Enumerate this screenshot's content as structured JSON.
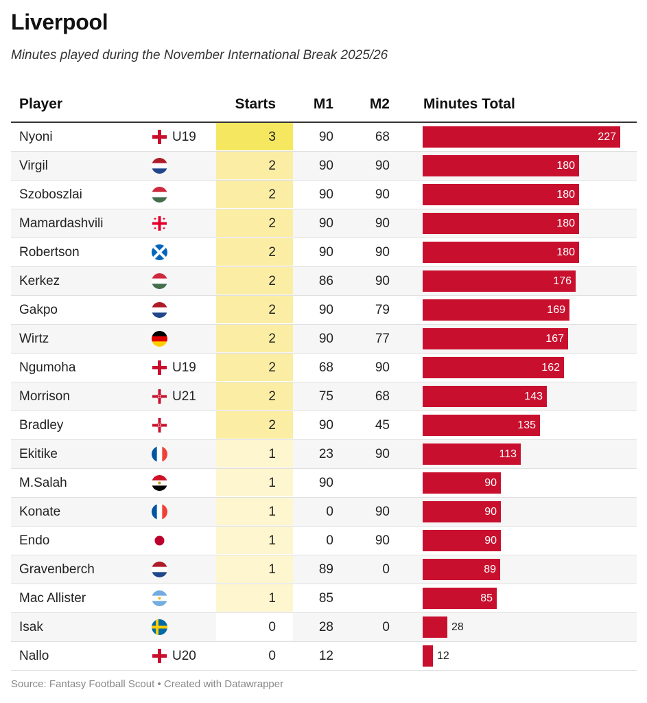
{
  "title": "Liverpool",
  "subtitle": "Minutes played during the November International Break 2025/26",
  "headers": {
    "player": "Player",
    "starts": "Starts",
    "m1": "M1",
    "m2": "M2",
    "total": "Minutes Total"
  },
  "source": "Source: Fantasy Football Scout • Created with Datawrapper",
  "colors": {
    "bar": "#c8102e",
    "starts3": "#f5e860",
    "starts2": "#fbeea4",
    "starts1": "#fdf6cf",
    "starts0": "#ffffff"
  },
  "chart_data": {
    "type": "table",
    "title": "Liverpool",
    "subtitle": "Minutes played during the November International Break 2025/26",
    "columns": [
      "Player",
      "Starts",
      "M1",
      "M2",
      "Minutes Total"
    ],
    "total_range": [
      0,
      227
    ],
    "rows": [
      {
        "player": "Nyoni",
        "flag": "england",
        "age": "U19",
        "starts": "3",
        "m1": "90",
        "m2": "68",
        "total": 227
      },
      {
        "player": "Virgil",
        "flag": "netherlands",
        "age": "",
        "starts": "2",
        "m1": "90",
        "m2": "90",
        "total": 180
      },
      {
        "player": "Szoboszlai",
        "flag": "hungary",
        "age": "",
        "starts": "2",
        "m1": "90",
        "m2": "90",
        "total": 180
      },
      {
        "player": "Mamardashvili",
        "flag": "georgia",
        "age": "",
        "starts": "2",
        "m1": "90",
        "m2": "90",
        "total": 180
      },
      {
        "player": "Robertson",
        "flag": "scotland",
        "age": "",
        "starts": "2",
        "m1": "90",
        "m2": "90",
        "total": 180
      },
      {
        "player": "Kerkez",
        "flag": "hungary",
        "age": "",
        "starts": "2",
        "m1": "86",
        "m2": "90",
        "total": 176
      },
      {
        "player": "Gakpo",
        "flag": "netherlands",
        "age": "",
        "starts": "2",
        "m1": "90",
        "m2": "79",
        "total": 169
      },
      {
        "player": "Wirtz",
        "flag": "germany",
        "age": "",
        "starts": "2",
        "m1": "90",
        "m2": "77",
        "total": 167
      },
      {
        "player": "Ngumoha",
        "flag": "england",
        "age": "U19",
        "starts": "2",
        "m1": "68",
        "m2": "90",
        "total": 162
      },
      {
        "player": "Morrison",
        "flag": "northern-ireland",
        "age": "U21",
        "starts": "2",
        "m1": "75",
        "m2": "68",
        "total": 143
      },
      {
        "player": "Bradley",
        "flag": "northern-ireland",
        "age": "",
        "starts": "2",
        "m1": "90",
        "m2": "45",
        "total": 135
      },
      {
        "player": "Ekitike",
        "flag": "france",
        "age": "",
        "starts": "1",
        "m1": "23",
        "m2": "90",
        "total": 113
      },
      {
        "player": "M.Salah",
        "flag": "egypt",
        "age": "",
        "starts": "1",
        "m1": "90",
        "m2": "",
        "total": 90
      },
      {
        "player": "Konate",
        "flag": "france",
        "age": "",
        "starts": "1",
        "m1": "0",
        "m2": "90",
        "total": 90
      },
      {
        "player": "Endo",
        "flag": "japan",
        "age": "",
        "starts": "1",
        "m1": "0",
        "m2": "90",
        "total": 90
      },
      {
        "player": "Gravenberch",
        "flag": "netherlands",
        "age": "",
        "starts": "1",
        "m1": "89",
        "m2": "0",
        "total": 89
      },
      {
        "player": "Mac Allister",
        "flag": "argentina",
        "age": "",
        "starts": "1",
        "m1": "85",
        "m2": "",
        "total": 85
      },
      {
        "player": "Isak",
        "flag": "sweden",
        "age": "",
        "starts": "0",
        "m1": "28",
        "m2": "0",
        "total": 28
      },
      {
        "player": "Nallo",
        "flag": "england",
        "age": "U20",
        "starts": "0",
        "m1": "12",
        "m2": "",
        "total": 12
      }
    ]
  }
}
